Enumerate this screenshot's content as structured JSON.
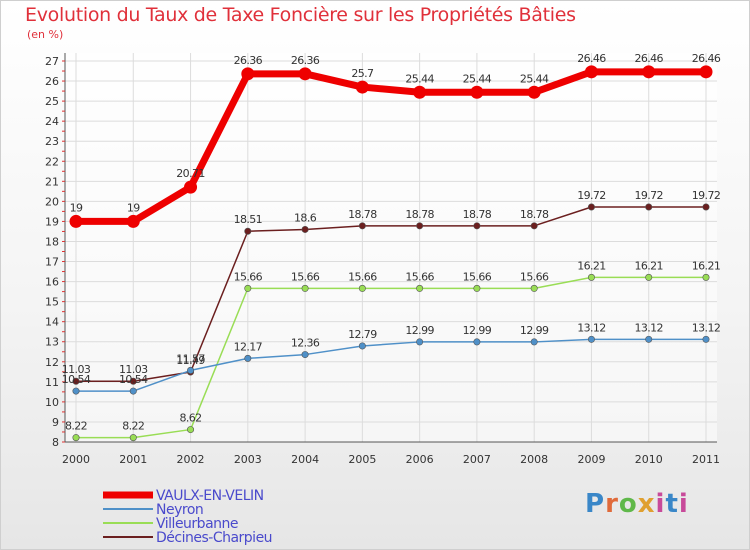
{
  "chart_data": {
    "type": "line",
    "title": "Evolution du Taux de Taxe Foncière sur les Propriétés Bâties",
    "subtitle": "(en %)",
    "x": [
      "2000",
      "2001",
      "2002",
      "2003",
      "2004",
      "2005",
      "2006",
      "2007",
      "2008",
      "2009",
      "2010",
      "2011"
    ],
    "ylim": [
      8,
      27
    ],
    "yticks": [
      "8",
      "9",
      "10",
      "11",
      "12",
      "13",
      "14",
      "15",
      "16",
      "17",
      "18",
      "19",
      "20",
      "21",
      "22",
      "23",
      "24",
      "25",
      "26",
      "27"
    ],
    "grid": true,
    "legend_position": "bottom-left",
    "series": [
      {
        "name": "VAULX-EN-VELIN",
        "color": "#ee0000",
        "values": [
          19,
          19,
          20.71,
          26.36,
          26.36,
          25.7,
          25.44,
          25.44,
          25.44,
          26.46,
          26.46,
          26.46
        ],
        "labels": [
          "19",
          "19",
          "20.71",
          "26.36",
          "26.36",
          "25.7",
          "25.44",
          "25.44",
          "25.44",
          "26.46",
          "26.46",
          "26.46"
        ]
      },
      {
        "name": "Neyron",
        "color": "#4f90c8",
        "values": [
          10.54,
          10.54,
          11.57,
          12.17,
          12.36,
          12.79,
          12.99,
          12.99,
          12.99,
          13.12,
          13.12,
          13.12
        ],
        "labels": [
          "10.54",
          "10.54",
          "11.57",
          "12.17",
          "12.36",
          "12.79",
          "12.99",
          "12.99",
          "12.99",
          "13.12",
          "13.12",
          "13.12"
        ]
      },
      {
        "name": "Villeurbanne",
        "color": "#99dd55",
        "values": [
          8.22,
          8.22,
          8.62,
          15.66,
          15.66,
          15.66,
          15.66,
          15.66,
          15.66,
          16.21,
          16.21,
          16.21
        ],
        "labels": [
          "8.22",
          "8.22",
          "8.62",
          "15.66",
          "15.66",
          "15.66",
          "15.66",
          "15.66",
          "15.66",
          "16.21",
          "16.21",
          "16.21"
        ]
      },
      {
        "name": "Décines-Charpieu",
        "color": "#6b1f1f",
        "values": [
          11.03,
          11.03,
          11.49,
          18.51,
          18.6,
          18.78,
          18.78,
          18.78,
          18.78,
          19.72,
          19.72,
          19.72
        ],
        "labels": [
          "11.03",
          "11.03",
          "11.49",
          "18.51",
          "18.6",
          "18.78",
          "18.78",
          "18.78",
          "18.78",
          "19.72",
          "19.72",
          "19.72"
        ]
      }
    ]
  },
  "logo": {
    "p": "P",
    "r": "r",
    "o": "o",
    "x": "x",
    "i": "i",
    "t": "t",
    "i2": "i"
  }
}
